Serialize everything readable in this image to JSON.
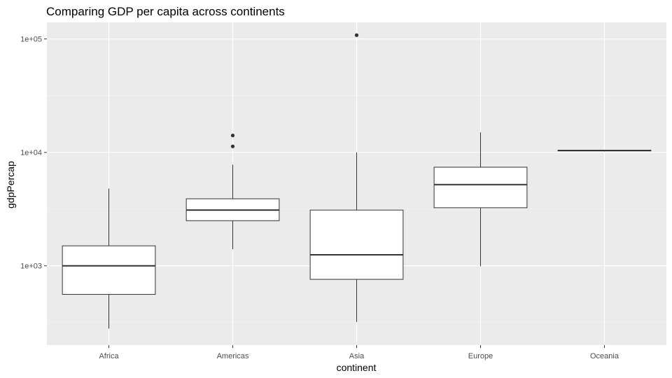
{
  "chart_data": {
    "type": "boxplot",
    "title": "Comparing GDP per capita across continents",
    "xlabel": "continent",
    "ylabel": "gdpPercap",
    "yscale": "log10",
    "ylim": [
      200,
      140000
    ],
    "y_ticks": [
      {
        "value": 1000,
        "label": "1e+03"
      },
      {
        "value": 10000,
        "label": "1e+04"
      },
      {
        "value": 100000,
        "label": "1e+05"
      }
    ],
    "categories": [
      "Africa",
      "Americas",
      "Asia",
      "Europe",
      "Oceania"
    ],
    "boxes": [
      {
        "category": "Africa",
        "whisker_low": 280,
        "q1": 560,
        "median": 1000,
        "q3": 1500,
        "whisker_high": 4800,
        "outliers": []
      },
      {
        "category": "Americas",
        "whisker_low": 1400,
        "q1": 2500,
        "median": 3100,
        "q3": 3900,
        "whisker_high": 7800,
        "outliers": [
          11300,
          14100
        ]
      },
      {
        "category": "Asia",
        "whisker_low": 320,
        "q1": 760,
        "median": 1250,
        "q3": 3100,
        "whisker_high": 10000,
        "outliers": [
          108000
        ]
      },
      {
        "category": "Europe",
        "whisker_low": 990,
        "q1": 3250,
        "median": 5200,
        "q3": 7400,
        "whisker_high": 15000,
        "outliers": []
      },
      {
        "category": "Oceania",
        "whisker_low": 10200,
        "q1": 10300,
        "median": 10400,
        "q3": 10450,
        "whisker_high": 10550,
        "outliers": []
      }
    ],
    "grid": true,
    "legend": "none",
    "colors": {
      "panel_bg": "#ebebeb",
      "grid_major": "#ffffff",
      "grid_minor": "#f4f4f4",
      "box_fill": "#ffffff",
      "box_stroke": "#333333",
      "outlier": "#333333"
    }
  }
}
